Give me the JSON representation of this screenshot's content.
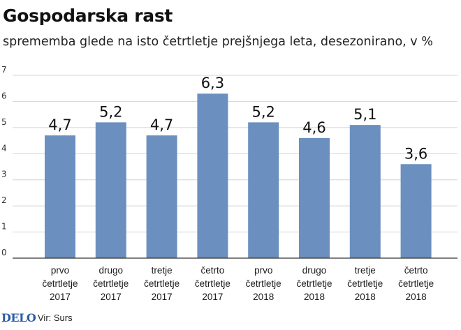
{
  "title": "Gospodarska rast",
  "subtitle": "sprememba glede na isto četrtletje prejšnjega leta, desezonirano, v %",
  "footer": {
    "logo": "DELO",
    "source": "Vir: Surs"
  },
  "colors": {
    "bar": "#6b8fbf",
    "grid": "#d4d4d4",
    "axis": "#333333"
  },
  "chart_data": {
    "type": "bar",
    "categories": [
      [
        "prvo",
        "četrtletje",
        "2017"
      ],
      [
        "drugo",
        "četrtletje",
        "2017"
      ],
      [
        "tretje",
        "četrtletje",
        "2017"
      ],
      [
        "četrto",
        "četrtletje",
        "2017"
      ],
      [
        "prvo",
        "četrtletje",
        "2018"
      ],
      [
        "drugo",
        "četrtletje",
        "2018"
      ],
      [
        "tretje",
        "četrtletje",
        "2018"
      ],
      [
        "četrto",
        "četrtletje",
        "2018"
      ]
    ],
    "values": [
      4.7,
      5.2,
      4.7,
      6.3,
      5.2,
      4.6,
      5.1,
      3.6
    ],
    "value_labels": [
      "4,7",
      "5,2",
      "4,7",
      "6,3",
      "5,2",
      "4,6",
      "5,1",
      "3,6"
    ],
    "y_ticks": [
      0,
      1,
      2,
      3,
      4,
      5,
      6,
      7
    ],
    "ylim": [
      0,
      7
    ],
    "grid": true,
    "title": "Gospodarska rast",
    "xlabel": "",
    "ylabel": ""
  }
}
